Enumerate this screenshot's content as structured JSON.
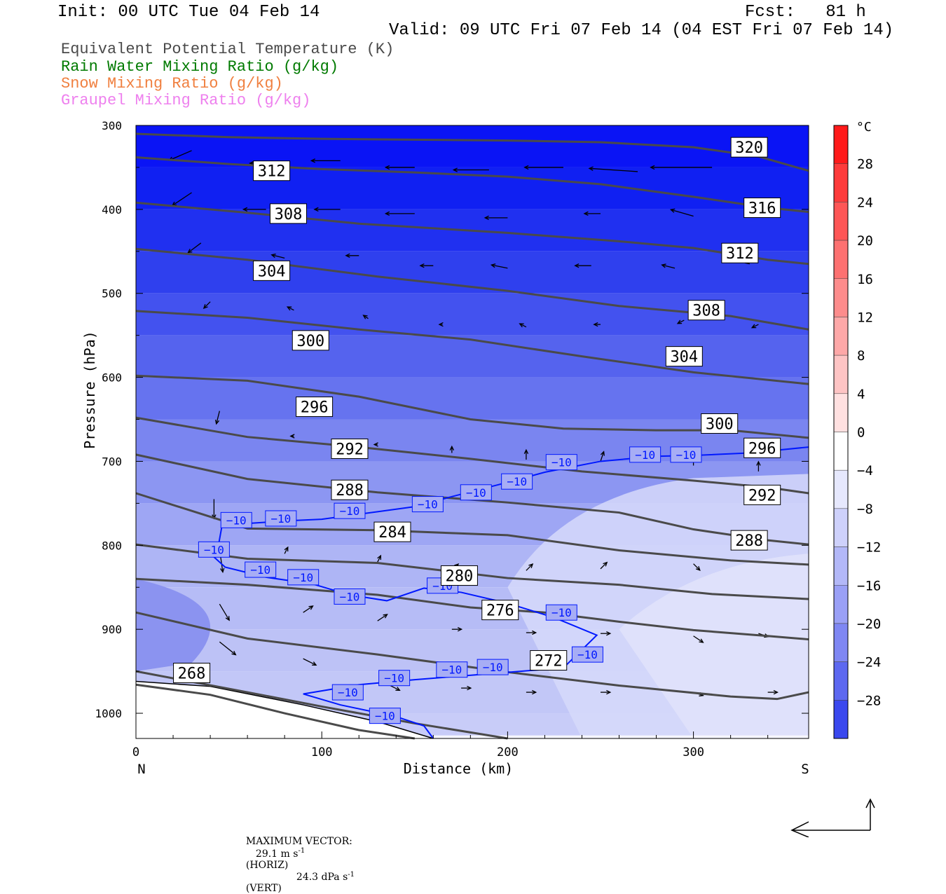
{
  "header": {
    "init": "Init: 00 UTC Tue 04 Feb 14",
    "fcst": "Fcst:   81 h",
    "valid": "Valid: 09 UTC Fri 07 Feb 14 (04 EST Fri 07 Feb 14)"
  },
  "legend": {
    "theta_e": "Equivalent Potential Temperature (K)",
    "rain": "Rain Water Mixing Ratio (g/kg)",
    "snow": "Snow Mixing Ratio (g/kg)",
    "graupel": "Graupel Mixing Ratio (g/kg)",
    "colors": {
      "theta_e": "#4a4a4a",
      "rain": "#007a00",
      "snow": "#f08040",
      "graupel": "#ee80ee"
    }
  },
  "colorbar": {
    "unit": "°C",
    "labels": [
      "28",
      "24",
      "20",
      "16",
      "12",
      "8",
      "4",
      "0",
      "−4",
      "−8",
      "−12",
      "−16",
      "−20",
      "−24",
      "−28"
    ],
    "levels": [
      28,
      24,
      20,
      16,
      12,
      8,
      4,
      0,
      -4,
      -8,
      -12,
      -16,
      -20,
      -24,
      -28
    ]
  },
  "footer": {
    "max_vector_label": "MAXIMUM VECTOR:",
    "horiz_value": "29.1 m s",
    "horiz_exp": "-1",
    "horiz_tag": "(HORIZ)",
    "vert_value": "24.3 dPa s",
    "vert_exp": "-1",
    "vert_tag": "(VERT)"
  },
  "chart_data": {
    "type": "contour",
    "xlabel": "Distance (km)",
    "ylabel": "Pressure (hPa)",
    "xlim": [
      0,
      362
    ],
    "ylim": [
      1030,
      300
    ],
    "x_ticks": [
      "0",
      "100",
      "200",
      "300"
    ],
    "y_ticks": [
      "300",
      "400",
      "500",
      "600",
      "700",
      "800",
      "900",
      "1000"
    ],
    "left_end": "N",
    "right_end": "S",
    "theta_e_contours": [
      {
        "level": "320",
        "points": [
          [
            0,
            310
          ],
          [
            50,
            314
          ],
          [
            100,
            316
          ],
          [
            150,
            317
          ],
          [
            200,
            318
          ],
          [
            250,
            320
          ],
          [
            300,
            326
          ],
          [
            335,
            337
          ],
          [
            362,
            354
          ]
        ],
        "label_at": [
          330,
          326
        ]
      },
      {
        "level": "316",
        "points": [
          [
            0,
            338
          ],
          [
            50,
            346
          ],
          [
            100,
            352
          ],
          [
            150,
            356
          ],
          [
            200,
            361
          ],
          [
            250,
            370
          ],
          [
            300,
            385
          ],
          [
            340,
            398
          ],
          [
            362,
            403
          ]
        ],
        "label_at": [
          337,
          398
        ]
      },
      {
        "level": "312",
        "points": [
          [
            0,
            392
          ],
          [
            60,
            404
          ],
          [
            120,
            417
          ],
          [
            200,
            428
          ],
          [
            260,
            438
          ],
          [
            300,
            446
          ],
          [
            340,
            460
          ],
          [
            362,
            465
          ]
        ],
        "label_at": [
          73,
          354
        ]
      },
      {
        "level": "312",
        "points": [],
        "label_at": [
          325,
          452
        ]
      },
      {
        "level": "308",
        "points": [
          [
            0,
            447
          ],
          [
            60,
            460
          ],
          [
            130,
            480
          ],
          [
            200,
            497
          ],
          [
            260,
            515
          ],
          [
            320,
            527
          ],
          [
            362,
            543
          ]
        ],
        "label_at": [
          82,
          405
        ]
      },
      {
        "level": "308",
        "points": [],
        "label_at": [
          307,
          520
        ]
      },
      {
        "level": "304",
        "points": [
          [
            0,
            521
          ],
          [
            60,
            529
          ],
          [
            120,
            543
          ],
          [
            180,
            555
          ],
          [
            240,
            575
          ],
          [
            300,
            594
          ],
          [
            362,
            608
          ]
        ],
        "label_at": [
          73,
          473
        ]
      },
      {
        "level": "304",
        "points": [],
        "label_at": [
          295,
          575
        ]
      },
      {
        "level": "300",
        "points": [
          [
            0,
            598
          ],
          [
            60,
            604
          ],
          [
            120,
            623
          ],
          [
            180,
            650
          ],
          [
            230,
            661
          ],
          [
            280,
            663
          ],
          [
            320,
            663
          ],
          [
            362,
            672
          ]
        ],
        "label_at": [
          94,
          556
        ]
      },
      {
        "level": "300",
        "points": [],
        "label_at": [
          314,
          655
        ]
      },
      {
        "level": "296",
        "points": [
          [
            0,
            648
          ],
          [
            60,
            671
          ],
          [
            120,
            683
          ],
          [
            180,
            697
          ],
          [
            240,
            712
          ],
          [
            300,
            723
          ],
          [
            340,
            731
          ],
          [
            362,
            738
          ]
        ],
        "label_at": [
          96,
          635
        ]
      },
      {
        "level": "296",
        "points": [],
        "label_at": [
          337,
          684
        ]
      },
      {
        "level": "292",
        "points": [
          [
            0,
            692
          ],
          [
            60,
            721
          ],
          [
            130,
            737
          ],
          [
            200,
            749
          ],
          [
            260,
            761
          ],
          [
            300,
            781
          ],
          [
            340,
            794
          ],
          [
            362,
            799
          ]
        ],
        "label_at": [
          115,
          685
        ]
      },
      {
        "level": "292",
        "points": [],
        "label_at": [
          337,
          740
        ]
      },
      {
        "level": "288",
        "points": [
          [
            0,
            738
          ],
          [
            60,
            780
          ],
          [
            130,
            782
          ],
          [
            200,
            788
          ],
          [
            260,
            806
          ],
          [
            320,
            818
          ],
          [
            362,
            823
          ]
        ],
        "label_at": [
          115,
          734
        ]
      },
      {
        "level": "288",
        "points": [],
        "label_at": [
          330,
          794
        ]
      },
      {
        "level": "284",
        "points": [
          [
            0,
            799
          ],
          [
            60,
            816
          ],
          [
            130,
            821
          ],
          [
            200,
            839
          ],
          [
            260,
            847
          ],
          [
            310,
            858
          ],
          [
            362,
            864
          ]
        ],
        "label_at": [
          138,
          784
        ]
      },
      {
        "level": "280",
        "points": [
          [
            0,
            840
          ],
          [
            60,
            847
          ],
          [
            130,
            859
          ],
          [
            180,
            874
          ],
          [
            220,
            880
          ],
          [
            260,
            891
          ],
          [
            300,
            901
          ],
          [
            340,
            908
          ],
          [
            362,
            912
          ]
        ],
        "label_at": [
          174,
          836
        ]
      },
      {
        "level": "276",
        "points": [
          [
            0,
            880
          ],
          [
            60,
            911
          ],
          [
            130,
            930
          ],
          [
            200,
            951
          ],
          [
            260,
            967
          ],
          [
            320,
            980
          ],
          [
            345,
            983
          ],
          [
            362,
            975
          ]
        ],
        "label_at": [
          196,
          877
        ]
      },
      {
        "level": "272",
        "points": [
          [
            0,
            950
          ],
          [
            60,
            975
          ],
          [
            100,
            992
          ],
          [
            150,
            1012
          ],
          [
            200,
            1030
          ]
        ],
        "label_at": [
          222,
          937
        ]
      },
      {
        "level": "268",
        "points": [
          [
            0,
            966
          ],
          [
            40,
            978
          ],
          [
            80,
            1000
          ],
          [
            120,
            1020
          ],
          [
            150,
            1030
          ]
        ],
        "label_at": [
          30,
          952
        ]
      }
    ],
    "temp_minus10_contour": {
      "level": "−10",
      "points": [
        [
          44,
          805
        ],
        [
          47,
          768
        ],
        [
          60,
          774
        ],
        [
          80,
          771
        ],
        [
          100,
          769
        ],
        [
          130,
          760
        ],
        [
          150,
          754
        ],
        [
          170,
          742
        ],
        [
          200,
          725
        ],
        [
          220,
          713
        ],
        [
          250,
          700
        ],
        [
          280,
          694
        ],
        [
          300,
          693
        ],
        [
          330,
          690
        ],
        [
          362,
          683
        ]
      ]
    },
    "temp_minus10_lower": {
      "points": [
        [
          40,
          810
        ],
        [
          48,
          826
        ],
        [
          70,
          838
        ],
        [
          95,
          846
        ],
        [
          115,
          859
        ],
        [
          135,
          866
        ],
        [
          155,
          851
        ],
        [
          175,
          856
        ],
        [
          200,
          869
        ],
        [
          225,
          886
        ],
        [
          248,
          907
        ],
        [
          230,
          946
        ],
        [
          190,
          953
        ],
        [
          150,
          960
        ],
        [
          120,
          966
        ],
        [
          90,
          977
        ]
      ]
    },
    "temp_minus10_bottom": {
      "points": [
        [
          90,
          977
        ],
        [
          110,
          990
        ],
        [
          140,
          1004
        ],
        [
          155,
          1015
        ],
        [
          160,
          1030
        ]
      ]
    }
  }
}
